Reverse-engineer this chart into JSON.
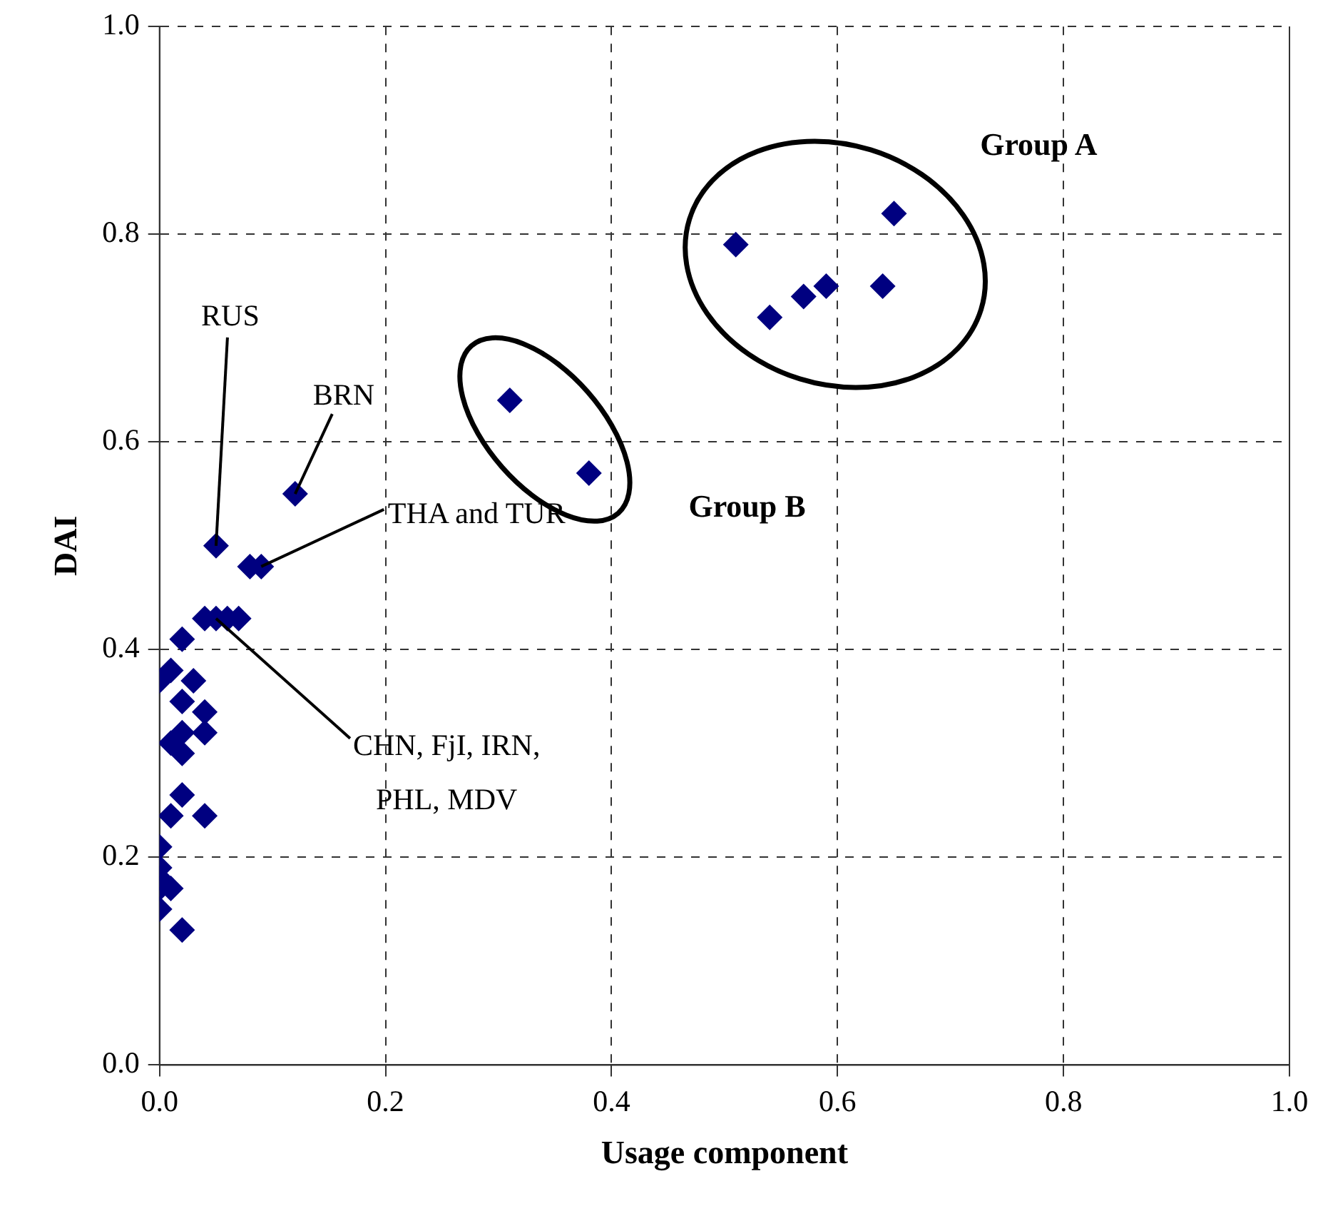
{
  "chart_data": {
    "type": "scatter",
    "xlabel": "Usage component",
    "ylabel": "DAI",
    "xlim": [
      0,
      1
    ],
    "ylim": [
      0,
      1
    ],
    "xticks": [
      {
        "value": 0,
        "label": "0.0"
      },
      {
        "value": 0.2,
        "label": "0.2"
      },
      {
        "value": 0.4,
        "label": "0.4"
      },
      {
        "value": 0.6,
        "label": "0.6"
      },
      {
        "value": 0.8,
        "label": "0.8"
      },
      {
        "value": 1,
        "label": "1.0"
      }
    ],
    "yticks": [
      {
        "value": 0,
        "label": "0.0"
      },
      {
        "value": 0.2,
        "label": "0.2"
      },
      {
        "value": 0.4,
        "label": "0.4"
      },
      {
        "value": 0.6,
        "label": "0.6"
      },
      {
        "value": 0.8,
        "label": "0.8"
      },
      {
        "value": 1,
        "label": "1.0"
      }
    ],
    "grid": true,
    "marker": "diamond",
    "legend": false,
    "series": [
      {
        "color": "#000080",
        "x": [
          0.65,
          0.51,
          0.54,
          0.57,
          0.59,
          0.64,
          0.31,
          0.38,
          0.12,
          0.05,
          0.08,
          0.09,
          0.04,
          0.05,
          0.06,
          0.07,
          0.02,
          0.0,
          0.01,
          0.03,
          0.02,
          0.04,
          0.04,
          0.02,
          0.01,
          0.02,
          0.02,
          0.01,
          0.04,
          0.0,
          0.0,
          0.0,
          0.0,
          0.01,
          0.0,
          0.02
        ],
        "values": [
          0.82,
          0.79,
          0.72,
          0.74,
          0.75,
          0.75,
          0.64,
          0.57,
          0.55,
          0.5,
          0.48,
          0.48,
          0.43,
          0.43,
          0.43,
          0.43,
          0.41,
          0.37,
          0.38,
          0.37,
          0.35,
          0.34,
          0.32,
          0.32,
          0.31,
          0.3,
          0.26,
          0.24,
          0.24,
          0.21,
          0.19,
          0.18,
          0.17,
          0.17,
          0.15,
          0.13
        ]
      }
    ],
    "annotations": [
      {
        "text": "RUS",
        "x": 0.05,
        "y": 0.5
      },
      {
        "text": "BRN",
        "x": 0.12,
        "y": 0.55
      },
      {
        "text": "THA and TUR",
        "x": 0.09,
        "y": 0.48
      },
      {
        "text": "CHN, FjI, IRN, PHL, MDV",
        "x": 0.05,
        "y": 0.43
      },
      "Group A",
      "Group B"
    ]
  }
}
